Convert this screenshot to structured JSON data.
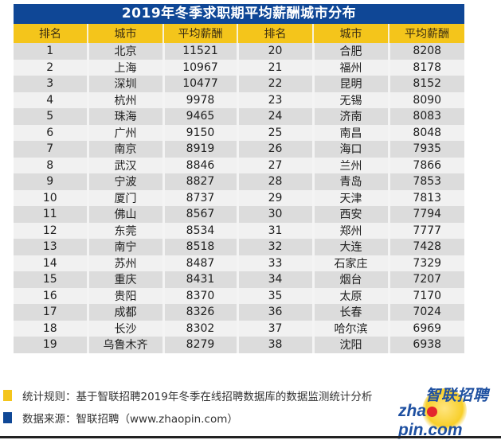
{
  "chart_data": {
    "type": "table",
    "title": "2019年冬季求职期平均薪酬城市分布",
    "columns": [
      "排名",
      "城市",
      "平均薪酬"
    ],
    "rows": [
      [
        1,
        "北京",
        11521
      ],
      [
        2,
        "上海",
        10967
      ],
      [
        3,
        "深圳",
        10477
      ],
      [
        4,
        "杭州",
        9978
      ],
      [
        5,
        "珠海",
        9465
      ],
      [
        6,
        "广州",
        9150
      ],
      [
        7,
        "南京",
        8919
      ],
      [
        8,
        "武汉",
        8846
      ],
      [
        9,
        "宁波",
        8827
      ],
      [
        10,
        "厦门",
        8737
      ],
      [
        11,
        "佛山",
        8567
      ],
      [
        12,
        "东莞",
        8534
      ],
      [
        13,
        "南宁",
        8518
      ],
      [
        14,
        "苏州",
        8487
      ],
      [
        15,
        "重庆",
        8431
      ],
      [
        16,
        "贵阳",
        8370
      ],
      [
        17,
        "成都",
        8326
      ],
      [
        18,
        "长沙",
        8302
      ],
      [
        19,
        "乌鲁木齐",
        8279
      ],
      [
        20,
        "合肥",
        8208
      ],
      [
        21,
        "福州",
        8178
      ],
      [
        22,
        "昆明",
        8152
      ],
      [
        23,
        "无锡",
        8090
      ],
      [
        24,
        "济南",
        8083
      ],
      [
        25,
        "南昌",
        8048
      ],
      [
        26,
        "海口",
        7935
      ],
      [
        27,
        "兰州",
        7866
      ],
      [
        28,
        "青岛",
        7853
      ],
      [
        29,
        "天津",
        7813
      ],
      [
        30,
        "西安",
        7794
      ],
      [
        31,
        "郑州",
        7777
      ],
      [
        32,
        "大连",
        7428
      ],
      [
        33,
        "石家庄",
        7329
      ],
      [
        34,
        "烟台",
        7207
      ],
      [
        35,
        "太原",
        7170
      ],
      [
        36,
        "长春",
        7024
      ],
      [
        37,
        "哈尔滨",
        6969
      ],
      [
        38,
        "沈阳",
        6938
      ]
    ]
  },
  "table": {
    "title": "2019年冬季求职期平均薪酬城市分布",
    "headers": [
      "排名",
      "城市",
      "平均薪酬",
      "排名",
      "城市",
      "平均薪酬"
    ],
    "rows": [
      [
        "1",
        "北京",
        "11521",
        "20",
        "合肥",
        "8208"
      ],
      [
        "2",
        "上海",
        "10967",
        "21",
        "福州",
        "8178"
      ],
      [
        "3",
        "深圳",
        "10477",
        "22",
        "昆明",
        "8152"
      ],
      [
        "4",
        "杭州",
        "9978",
        "23",
        "无锡",
        "8090"
      ],
      [
        "5",
        "珠海",
        "9465",
        "24",
        "济南",
        "8083"
      ],
      [
        "6",
        "广州",
        "9150",
        "25",
        "南昌",
        "8048"
      ],
      [
        "7",
        "南京",
        "8919",
        "26",
        "海口",
        "7935"
      ],
      [
        "8",
        "武汉",
        "8846",
        "27",
        "兰州",
        "7866"
      ],
      [
        "9",
        "宁波",
        "8827",
        "28",
        "青岛",
        "7853"
      ],
      [
        "10",
        "厦门",
        "8737",
        "29",
        "天津",
        "7813"
      ],
      [
        "11",
        "佛山",
        "8567",
        "30",
        "西安",
        "7794"
      ],
      [
        "12",
        "东莞",
        "8534",
        "31",
        "郑州",
        "7777"
      ],
      [
        "13",
        "南宁",
        "8518",
        "32",
        "大连",
        "7428"
      ],
      [
        "14",
        "苏州",
        "8487",
        "33",
        "石家庄",
        "7329"
      ],
      [
        "15",
        "重庆",
        "8431",
        "34",
        "烟台",
        "7207"
      ],
      [
        "16",
        "贵阳",
        "8370",
        "35",
        "太原",
        "7170"
      ],
      [
        "17",
        "成都",
        "8326",
        "36",
        "长春",
        "7024"
      ],
      [
        "18",
        "长沙",
        "8302",
        "37",
        "哈尔滨",
        "6969"
      ],
      [
        "19",
        "乌鲁木齐",
        "8279",
        "38",
        "沈阳",
        "6938"
      ]
    ]
  },
  "footer": {
    "rule_label": "统计规则：基于智联招聘2019年冬季在线招聘数据库的数据监测统计分析",
    "source_label": "数据来源：智联招聘（www.zhaopin.com）",
    "rule_color": "#f4c51b",
    "source_color": "#0f4796"
  },
  "logo": {
    "cn": "智联招聘",
    "en_prefix": "zha",
    "en_suffix": "pin.com"
  },
  "colors": {
    "title_bg": "#0f4796",
    "header_bg": "#f4c51b",
    "row_odd": "#dcdcdc",
    "row_even": "#f1f1f1"
  }
}
